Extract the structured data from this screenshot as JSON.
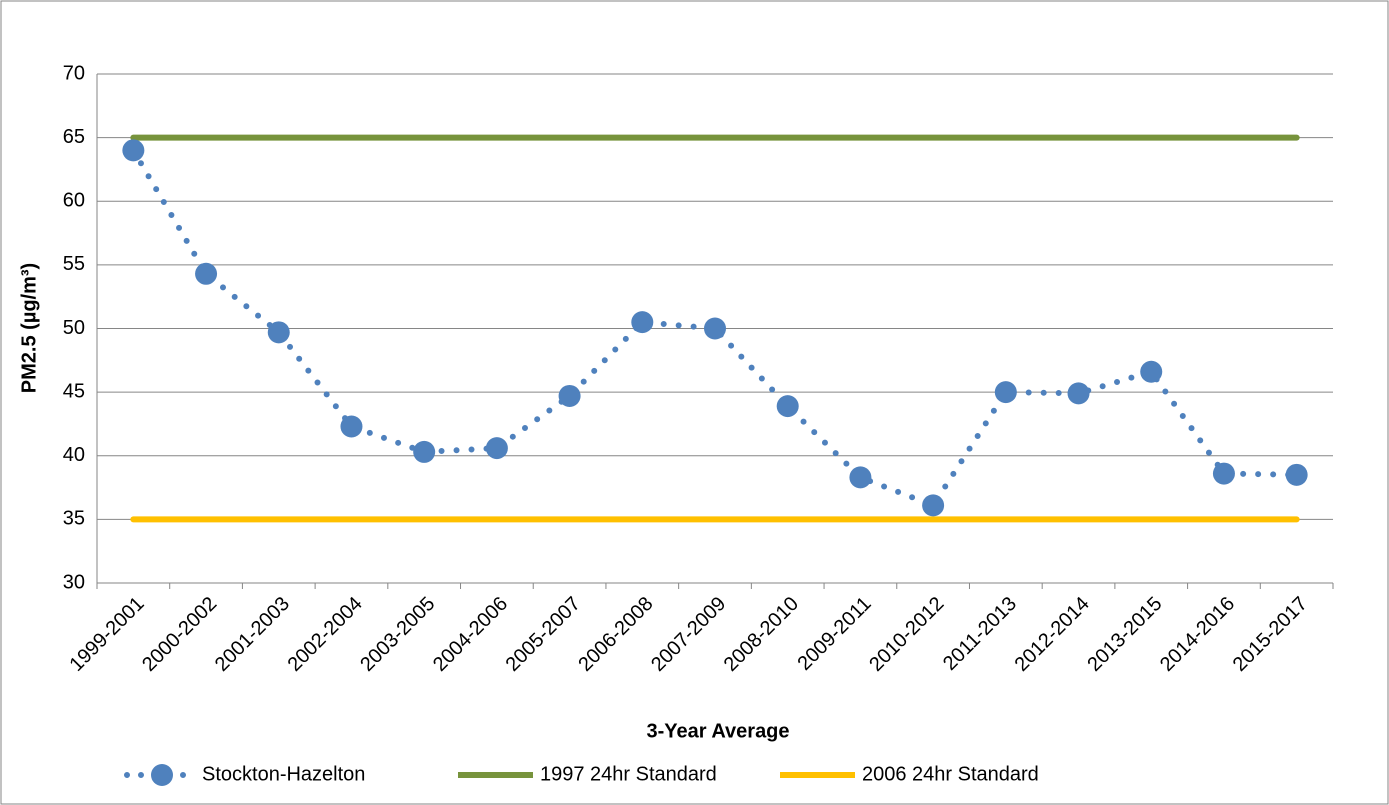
{
  "chart_data": {
    "type": "line",
    "x_label": "3-Year Average",
    "y_label": "PM2.5 (µg/m³)",
    "categories": [
      "1999-2001",
      "2000-2002",
      "2001-2003",
      "2002-2004",
      "2003-2005",
      "2004-2006",
      "2005-2007",
      "2006-2008",
      "2007-2009",
      "2008-2010",
      "2009-2011",
      "2010-2012",
      "2011-2013",
      "2012-2014",
      "2013-2015",
      "2014-2016",
      "2015-2017"
    ],
    "series": [
      {
        "name": "Stockton-Hazelton",
        "color": "#4f81bd",
        "style": "dotted-markers",
        "values": [
          64.0,
          54.3,
          49.7,
          42.3,
          40.3,
          40.6,
          44.7,
          50.5,
          50.0,
          43.9,
          38.3,
          36.1,
          45.0,
          44.9,
          46.6,
          38.6,
          38.5
        ]
      },
      {
        "name": "1997 24hr Standard",
        "color": "#77933c",
        "style": "solid",
        "values": [
          65,
          65,
          65,
          65,
          65,
          65,
          65,
          65,
          65,
          65,
          65,
          65,
          65,
          65,
          65,
          65,
          65
        ]
      },
      {
        "name": "2006 24hr Standard",
        "color": "#ffc000",
        "style": "solid",
        "values": [
          35,
          35,
          35,
          35,
          35,
          35,
          35,
          35,
          35,
          35,
          35,
          35,
          35,
          35,
          35,
          35,
          35
        ]
      }
    ],
    "ylim": [
      30,
      70
    ],
    "yticks": [
      30,
      35,
      40,
      45,
      50,
      55,
      60,
      65,
      70
    ],
    "grid": true,
    "legend": "bottom"
  }
}
